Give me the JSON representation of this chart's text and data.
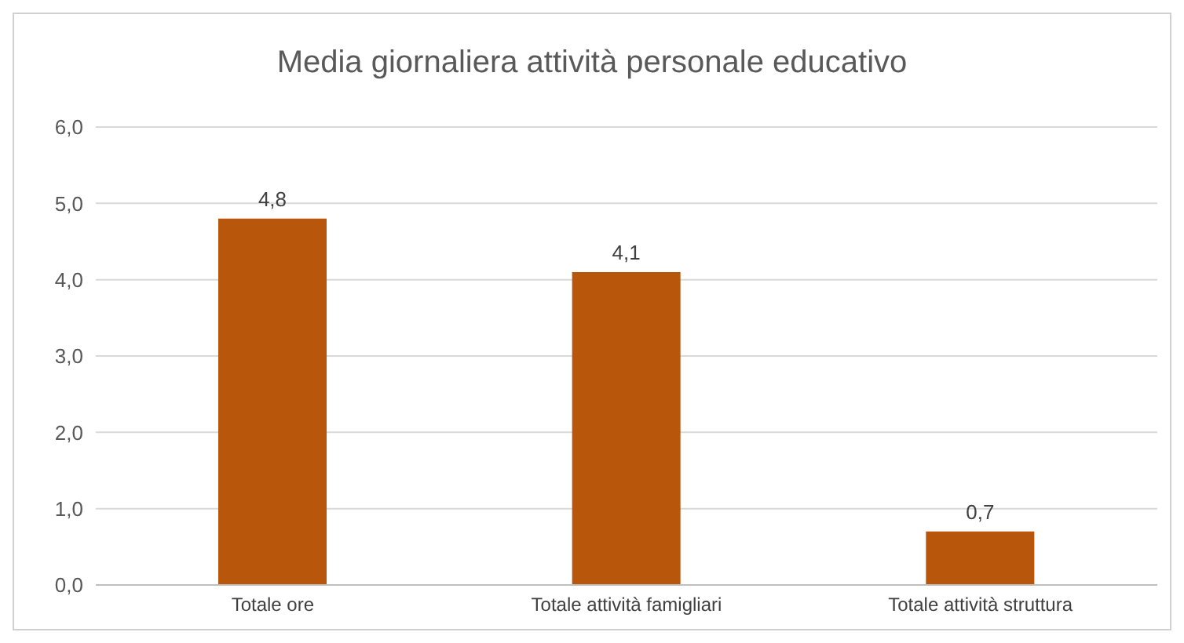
{
  "chart_data": {
    "type": "bar",
    "title": "Media giornaliera attività personale educativo",
    "categories": [
      "Totale ore",
      "Totale attività famigliari",
      "Totale attività struttura"
    ],
    "values": [
      4.8,
      4.1,
      0.7
    ],
    "color": "#b8570b",
    "value_labels": [
      "4,8",
      "4,1",
      "0,7"
    ],
    "ylim": [
      0,
      6
    ],
    "yticks": [
      {
        "value": 0,
        "label": "0,0"
      },
      {
        "value": 1,
        "label": "1,0"
      },
      {
        "value": 2,
        "label": "2,0"
      },
      {
        "value": 3,
        "label": "3,0"
      },
      {
        "value": 4,
        "label": "4,0"
      },
      {
        "value": 5,
        "label": "5,0"
      },
      {
        "value": 6,
        "label": "6,0"
      }
    ],
    "grid": "y",
    "legend": false
  }
}
